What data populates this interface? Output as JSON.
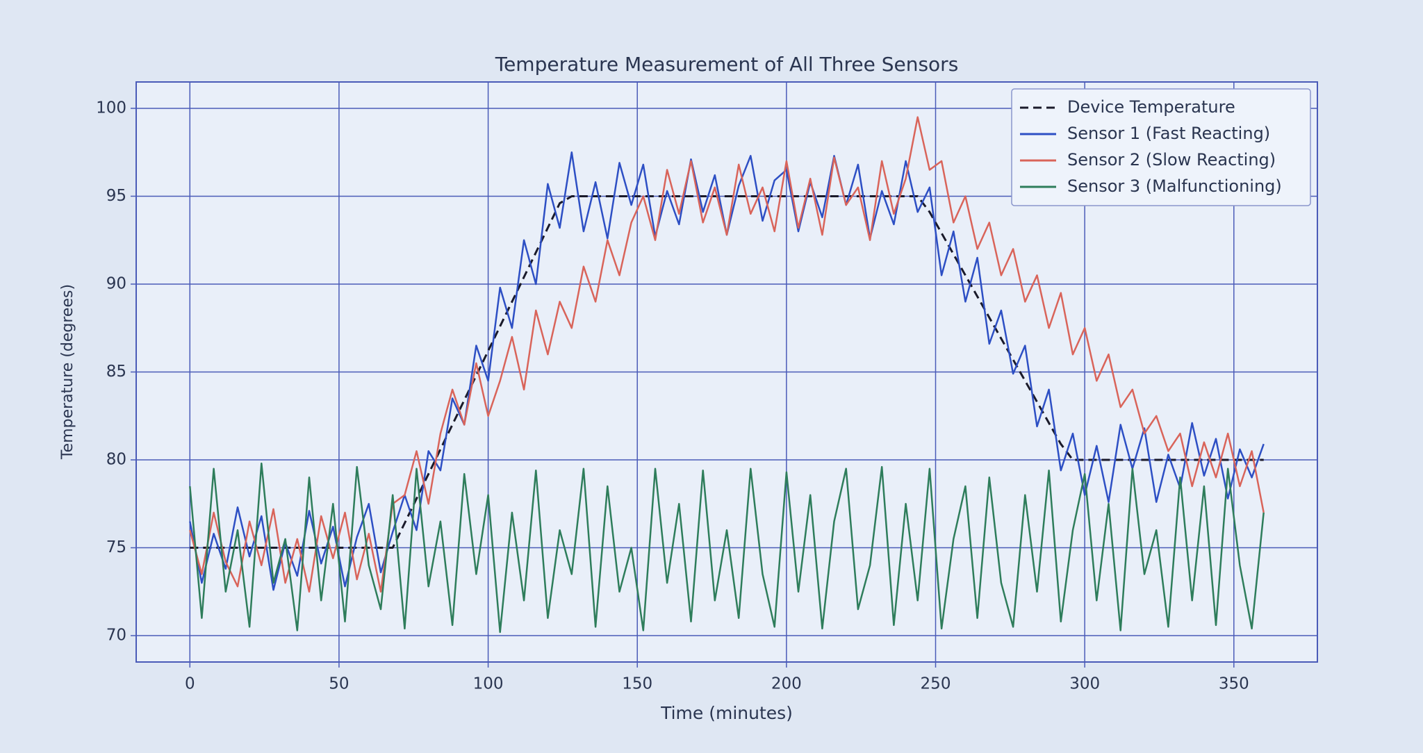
{
  "chart_data": {
    "type": "line",
    "title": "Temperature Measurement of All Three Sensors",
    "xlabel": "Time (minutes)",
    "ylabel": "Temperature (degrees)",
    "xlim": [
      -18,
      378
    ],
    "ylim": [
      68.5,
      101.5
    ],
    "xticks": [
      0,
      50,
      100,
      150,
      200,
      250,
      300,
      350
    ],
    "yticks": [
      70,
      75,
      80,
      85,
      90,
      95,
      100
    ],
    "grid": true,
    "legend": "upper right",
    "x": [
      0,
      4,
      8,
      12,
      16,
      20,
      24,
      28,
      32,
      36,
      40,
      44,
      48,
      52,
      56,
      60,
      64,
      68,
      72,
      76,
      80,
      84,
      88,
      92,
      96,
      100,
      104,
      108,
      112,
      116,
      120,
      124,
      128,
      132,
      136,
      140,
      144,
      148,
      152,
      156,
      160,
      164,
      168,
      172,
      176,
      180,
      184,
      188,
      192,
      196,
      200,
      204,
      208,
      212,
      216,
      220,
      224,
      228,
      232,
      236,
      240,
      244,
      248,
      252,
      256,
      260,
      264,
      268,
      272,
      276,
      280,
      284,
      288,
      292,
      296,
      300,
      304,
      308,
      312,
      316,
      320,
      324,
      328,
      332,
      336,
      340,
      344,
      348,
      352,
      356,
      360
    ],
    "series": [
      {
        "name": "Device Temperature",
        "color": "#1a1a2a",
        "linestyle": "dashed",
        "values": [
          75,
          75,
          75,
          75,
          75,
          75,
          75,
          75,
          75,
          75,
          75,
          75,
          75,
          75,
          75,
          75,
          75,
          75,
          76.4,
          77.8,
          79.2,
          80.6,
          82.0,
          83.4,
          84.8,
          86.2,
          87.6,
          89.0,
          90.4,
          91.8,
          93.2,
          94.6,
          95,
          95,
          95,
          95,
          95,
          95,
          95,
          95,
          95,
          95,
          95,
          95,
          95,
          95,
          95,
          95,
          95,
          95,
          95,
          95,
          95,
          95,
          95,
          95,
          95,
          95,
          95,
          95,
          95,
          95,
          94.1,
          92.9,
          91.7,
          90.5,
          89.3,
          88.1,
          86.9,
          85.7,
          84.5,
          83.3,
          82.1,
          80.9,
          80,
          80,
          80,
          80,
          80,
          80,
          80,
          80,
          80,
          80,
          80,
          80,
          80,
          80,
          80,
          80,
          80
        ]
      },
      {
        "name": "Sensor 1 (Fast Reacting)",
        "color": "#2d4fc4",
        "linestyle": "solid",
        "values": [
          76.5,
          73.0,
          75.8,
          73.8,
          77.3,
          74.5,
          76.8,
          72.6,
          75.3,
          73.4,
          77.1,
          74.1,
          76.2,
          72.8,
          75.6,
          77.5,
          73.6,
          75.9,
          78.0,
          76.0,
          80.5,
          79.4,
          83.5,
          82.0,
          86.5,
          84.5,
          89.8,
          87.5,
          92.5,
          90.0,
          95.7,
          93.2,
          97.5,
          93.0,
          95.8,
          92.6,
          96.9,
          94.5,
          96.8,
          92.7,
          95.3,
          93.4,
          97.1,
          94.1,
          96.2,
          92.8,
          95.6,
          97.3,
          93.6,
          95.9,
          96.5,
          93.0,
          95.8,
          93.8,
          97.3,
          94.5,
          96.8,
          92.6,
          95.3,
          93.4,
          97.0,
          94.1,
          95.5,
          90.5,
          93.0,
          89.0,
          91.5,
          86.6,
          88.5,
          84.9,
          86.5,
          81.9,
          84.0,
          79.4,
          81.5,
          78.0,
          80.8,
          77.6,
          82.0,
          79.5,
          81.8,
          77.6,
          80.3,
          78.4,
          82.1,
          79.1,
          81.2,
          77.8,
          80.6,
          79.0,
          80.9
        ]
      },
      {
        "name": "Sensor 2 (Slow Reacting)",
        "color": "#d9645a",
        "linestyle": "solid",
        "values": [
          76.0,
          73.5,
          77.0,
          74.2,
          72.8,
          76.5,
          74.0,
          77.2,
          73.0,
          75.5,
          72.5,
          76.8,
          74.4,
          77.0,
          73.2,
          75.8,
          72.5,
          77.5,
          78.0,
          80.5,
          77.5,
          81.5,
          84.0,
          82.0,
          85.5,
          82.5,
          84.5,
          87.0,
          84.0,
          88.5,
          86.0,
          89.0,
          87.5,
          91.0,
          89.0,
          92.5,
          90.5,
          93.5,
          95.0,
          92.5,
          96.5,
          94.0,
          97.0,
          93.5,
          95.5,
          92.8,
          96.8,
          94.0,
          95.5,
          93.0,
          97.0,
          93.2,
          96.0,
          92.8,
          97.2,
          94.5,
          95.5,
          92.5,
          97.0,
          94.0,
          96.0,
          99.5,
          96.5,
          97.0,
          93.5,
          95.0,
          92.0,
          93.5,
          90.5,
          92.0,
          89.0,
          90.5,
          87.5,
          89.5,
          86.0,
          87.5,
          84.5,
          86.0,
          83.0,
          84.0,
          81.5,
          82.5,
          80.5,
          81.5,
          78.5,
          81.0,
          79.0,
          81.5,
          78.5,
          80.5,
          77.0
        ]
      },
      {
        "name": "Sensor 3 (Malfunctioning)",
        "color": "#2e7d5b",
        "linestyle": "solid",
        "values": [
          78.5,
          71.0,
          79.5,
          72.5,
          76.0,
          70.5,
          79.8,
          73.0,
          75.5,
          70.3,
          79.0,
          72.0,
          77.5,
          70.8,
          79.6,
          74.0,
          71.5,
          78.0,
          70.4,
          79.5,
          72.8,
          76.5,
          70.6,
          79.2,
          73.5,
          78.0,
          70.2,
          77.0,
          72.0,
          79.4,
          71.0,
          76.0,
          73.5,
          79.5,
          70.5,
          78.5,
          72.5,
          75.0,
          70.3,
          79.5,
          73.0,
          77.5,
          70.8,
          79.4,
          72.0,
          76.0,
          71.0,
          79.5,
          73.5,
          70.5,
          79.3,
          72.5,
          78.0,
          70.4,
          76.5,
          79.5,
          71.5,
          74.0,
          79.6,
          70.6,
          77.5,
          72.0,
          79.5,
          70.4,
          75.5,
          78.5,
          71.0,
          79.0,
          73.0,
          70.5,
          78.0,
          72.5,
          79.4,
          70.8,
          76.0,
          79.2,
          72.0,
          77.5,
          70.3,
          79.5,
          73.5,
          76.0,
          70.5,
          79.0,
          72.0,
          78.5,
          70.6,
          79.5,
          74.0,
          70.4,
          77.0
        ]
      }
    ]
  }
}
